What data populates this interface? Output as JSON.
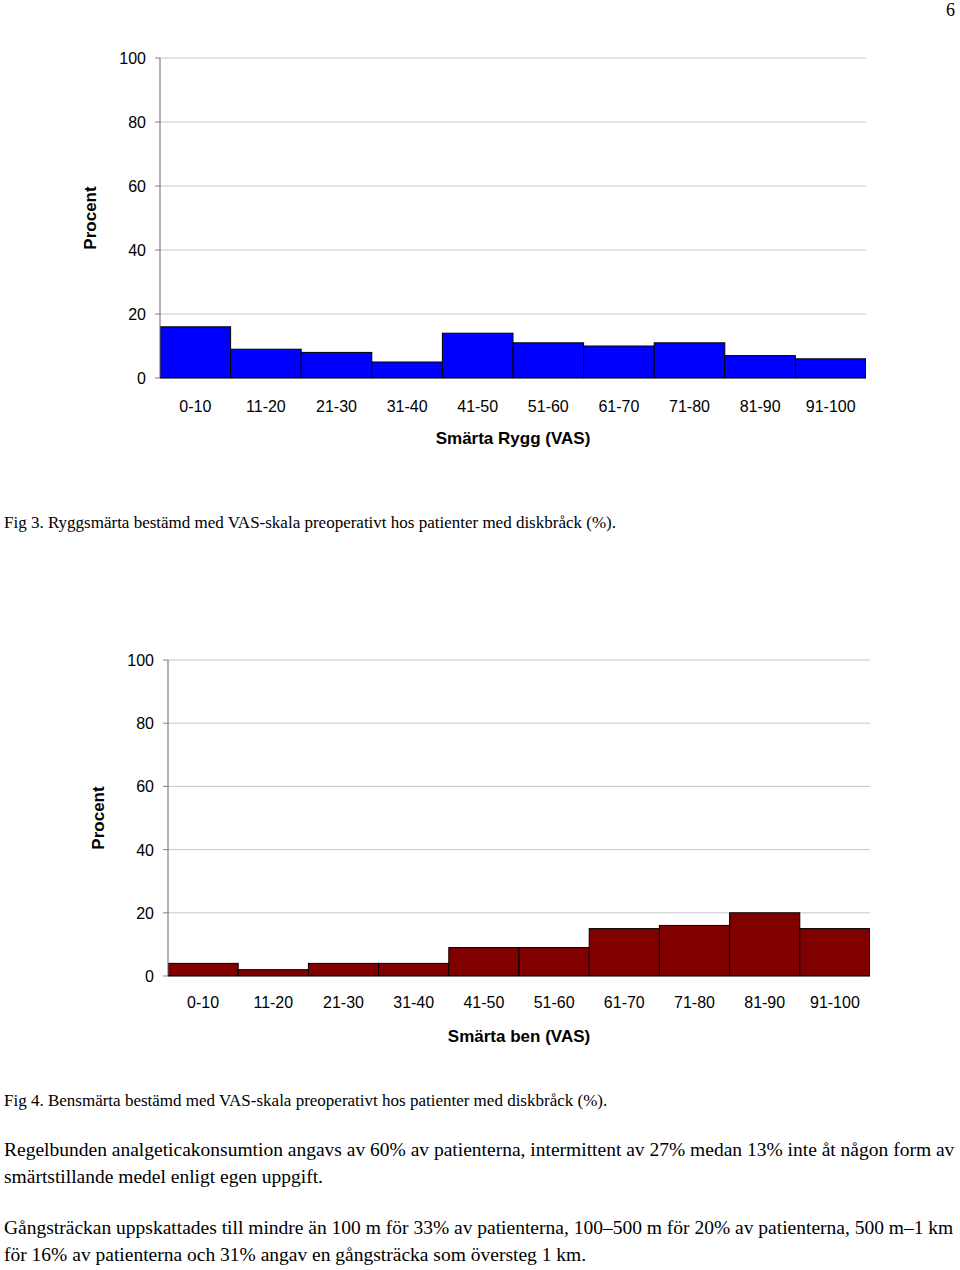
{
  "page_number": "6",
  "chart_data": [
    {
      "type": "bar",
      "categories": [
        "0-10",
        "11-20",
        "21-30",
        "31-40",
        "41-50",
        "51-60",
        "61-70",
        "71-80",
        "81-90",
        "91-100"
      ],
      "values": [
        16,
        9,
        8,
        5,
        14,
        11,
        10,
        11,
        7,
        6
      ],
      "color": "#0000ff",
      "x_label": "Smärta Rygg (VAS)",
      "y_label": "Procent",
      "ylim": [
        0,
        100
      ],
      "yticks": [
        0,
        20,
        40,
        60,
        80,
        100
      ],
      "grid": true,
      "caption": "Fig 3. Ryggsmärta bestämd med VAS-skala preoperativt hos patienter med diskbråck (%)."
    },
    {
      "type": "bar",
      "categories": [
        "0-10",
        "11-20",
        "21-30",
        "31-40",
        "41-50",
        "51-60",
        "61-70",
        "71-80",
        "81-90",
        "91-100"
      ],
      "values": [
        4,
        2,
        4,
        4,
        9,
        9,
        15,
        16,
        20,
        15
      ],
      "color": "#800000",
      "x_label": "Smärta ben (VAS)",
      "y_label": "Procent",
      "ylim": [
        0,
        100
      ],
      "yticks": [
        0,
        20,
        40,
        60,
        80,
        100
      ],
      "grid": true,
      "caption": "Fig 4. Bensmärta bestämd med VAS-skala preoperativt hos patienter med diskbråck (%)."
    }
  ],
  "paragraphs": [
    "Regelbunden analgeticakonsumtion angavs av 60% av patienterna, intermittent av 27% medan 13% inte åt någon form av smärtstillande medel enligt egen uppgift.",
    "Gångsträckan uppskattades till mindre än 100 m för 33% av patienterna, 100–500 m för 20% av patienterna, 500 m–1 km för 16% av patienterna och 31% angav en gångsträcka som översteg 1 km."
  ]
}
